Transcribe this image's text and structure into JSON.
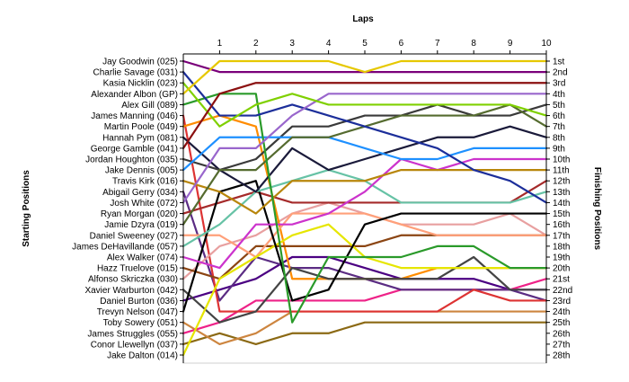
{
  "chart_data": {
    "type": "line",
    "title": "Laps",
    "ylabel": "Starting Positions",
    "y2label": "Finishing Positions",
    "x": [
      0,
      1,
      2,
      3,
      4,
      5,
      6,
      7,
      8,
      9,
      10
    ],
    "x_tick_labels": [
      "1",
      "2",
      "3",
      "4",
      "5",
      "6",
      "7",
      "8",
      "9",
      "10"
    ],
    "position_range": [
      1,
      28
    ],
    "y_inverted": true,
    "starting_labels": [
      "Jay Goodwin (025)",
      "Charlie Savage (031)",
      "Kasia Nicklin (023)",
      "Alexander Albon (GP)",
      "Alex Gill (089)",
      "James Manning (046)",
      "Martin Poole (049)",
      "Hannah Pym (081)",
      "George Gamble (041)",
      "Jordan Houghton (035)",
      "Jake Dennis (005)",
      "Travis Kirk (016)",
      "Abigail Gerry (034)",
      "Josh White (072)",
      "Ryan Morgan (020)",
      "Jamie Dzyra (019)",
      "Daniel Sweeney (027)",
      "James DeHavillande (057)",
      "Alex Walker (074)",
      "Hazz Truelove (015)",
      "Alfonso Skriczka (030)",
      "Xavier Warburton (042)",
      "Daniel Burton (036)",
      "Trevyn Nelson (047)",
      "Toby Sowery (051)",
      "James Struggles (055)",
      "Conor Llewellyn (037)",
      "Jake Dalton (014)"
    ],
    "finishing_labels": [
      "1st",
      "2nd",
      "3rd",
      "4th",
      "5th",
      "6th",
      "7th",
      "8th",
      "9th",
      "10th",
      "11th",
      "12th",
      "13th",
      "14th",
      "15th",
      "16th",
      "17th",
      "18th",
      "19th",
      "20th",
      "21st",
      "22nd",
      "23rd",
      "24th",
      "25th",
      "26th",
      "27th",
      "28th"
    ],
    "grid": false,
    "series": [
      {
        "color": "#e6c800",
        "positions": [
          4,
          1,
          1,
          1,
          1,
          2,
          1,
          1,
          1,
          1,
          1
        ]
      },
      {
        "color": "#7a007a",
        "positions": [
          1,
          2,
          2,
          2,
          2,
          2,
          2,
          2,
          2,
          2,
          2
        ]
      },
      {
        "color": "#8b1010",
        "positions": [
          9,
          4,
          3,
          3,
          3,
          3,
          3,
          3,
          3,
          3,
          3
        ]
      },
      {
        "color": "#7fd000",
        "positions": [
          3,
          7,
          5,
          4,
          5,
          5,
          5,
          5,
          5,
          5,
          6
        ]
      },
      {
        "color": "#9966cc",
        "positions": [
          14,
          9,
          9,
          6,
          4,
          4,
          4,
          4,
          4,
          4,
          4
        ]
      },
      {
        "color": "#1c2e9a",
        "positions": [
          2,
          6,
          6,
          5,
          6,
          7,
          8,
          9,
          11,
          12,
          14
        ]
      },
      {
        "color": "#2a9a2a",
        "positions": [
          5,
          4,
          4,
          25,
          19,
          19,
          19,
          18,
          18,
          20,
          20
        ]
      },
      {
        "color": "#556b2f",
        "positions": [
          16,
          11,
          11,
          8,
          8,
          7,
          6,
          6,
          6,
          5,
          7
        ]
      },
      {
        "color": "#1e90ff",
        "positions": [
          11,
          8,
          8,
          8,
          8,
          9,
          10,
          10,
          9,
          9,
          9
        ]
      },
      {
        "color": "#3a3a3a",
        "positions": [
          10,
          11,
          10,
          7,
          7,
          6,
          6,
          5,
          6,
          6,
          5
        ]
      },
      {
        "color": "#1a1a3a",
        "positions": [
          8,
          11,
          13,
          9,
          11,
          10,
          9,
          8,
          8,
          7,
          8
        ]
      },
      {
        "color": "#b8860b",
        "positions": [
          12,
          13,
          15,
          12,
          12,
          12,
          11,
          11,
          11,
          11,
          11
        ]
      },
      {
        "color": "#cc33cc",
        "positions": [
          19,
          20,
          16,
          16,
          15,
          13,
          10,
          11,
          10,
          10,
          10
        ]
      },
      {
        "color": "#66c2a5",
        "positions": [
          18,
          16,
          13,
          12,
          11,
          12,
          14,
          14,
          14,
          14,
          13
        ]
      },
      {
        "color": "#000000",
        "positions": [
          24,
          13,
          12,
          23,
          22,
          16,
          15,
          15,
          15,
          15,
          15
        ]
      },
      {
        "color": "#e6e600",
        "positions": [
          28,
          21,
          19,
          17,
          16,
          19,
          20,
          20,
          20,
          20,
          20
        ]
      },
      {
        "color": "#ffa07a",
        "positions": [
          17,
          17,
          19,
          15,
          15,
          15,
          16,
          17,
          17,
          17,
          17
        ]
      },
      {
        "color": "#8b4513",
        "positions": [
          20,
          21,
          18,
          18,
          18,
          18,
          17,
          17,
          17,
          17,
          17
        ]
      },
      {
        "color": "#444444",
        "positions": [
          22,
          25,
          24,
          20,
          21,
          21,
          21,
          21,
          19,
          22,
          22
        ]
      },
      {
        "color": "#a52a2a",
        "positions": [
          15,
          14,
          13,
          14,
          14,
          14,
          14,
          14,
          14,
          14,
          12
        ]
      },
      {
        "color": "#ff8c00",
        "positions": [
          7,
          6,
          7,
          21,
          21,
          21,
          21,
          20,
          20,
          20,
          20
        ]
      },
      {
        "color": "#e8a0a0",
        "positions": [
          21,
          18,
          17,
          15,
          14,
          15,
          16,
          16,
          16,
          15,
          17
        ]
      },
      {
        "color": "#dd3333",
        "positions": [
          6,
          24,
          24,
          24,
          24,
          24,
          24,
          24,
          22,
          23,
          23
        ]
      },
      {
        "color": "#5b2c83",
        "positions": [
          13,
          23,
          19,
          20,
          20,
          21,
          22,
          22,
          22,
          22,
          23
        ]
      },
      {
        "color": "#ee2288",
        "positions": [
          26,
          25,
          23,
          23,
          23,
          23,
          22,
          22,
          22,
          22,
          21
        ]
      },
      {
        "color": "#4b0082",
        "positions": [
          23,
          22,
          21,
          19,
          19,
          20,
          21,
          21,
          21,
          22,
          22
        ]
      },
      {
        "color": "#cd853f",
        "positions": [
          25,
          27,
          26,
          24,
          24,
          24,
          24,
          24,
          24,
          24,
          24
        ]
      },
      {
        "color": "#8b6914",
        "positions": [
          27,
          26,
          27,
          26,
          26,
          25,
          25,
          25,
          25,
          25,
          25
        ]
      }
    ]
  }
}
